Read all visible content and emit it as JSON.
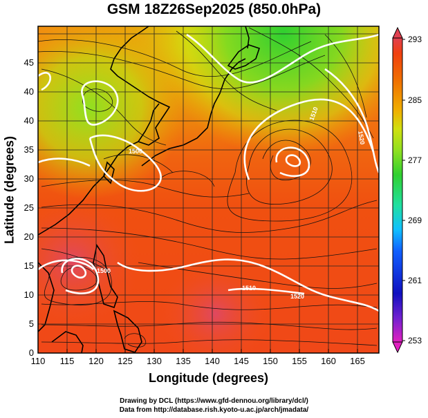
{
  "title": "GSM 18Z26Sep2025 (850.0hPa)",
  "x_axis": {
    "label": "Longitude (degrees)",
    "ticks": [
      "110",
      "115",
      "120",
      "125",
      "130",
      "135",
      "140",
      "145",
      "150",
      "155",
      "160",
      "165"
    ]
  },
  "y_axis": {
    "label": "Latitude  (degrees)",
    "ticks": [
      "0",
      "5",
      "10",
      "15",
      "20",
      "25",
      "30",
      "35",
      "40",
      "45"
    ]
  },
  "colorbar": {
    "ticks": [
      "253",
      "261",
      "269",
      "277",
      "285",
      "293"
    ],
    "colors": [
      "#e020c0",
      "#7020d0",
      "#1010c0",
      "#1060ff",
      "#10c0ff",
      "#20e0a0",
      "#30d030",
      "#90e020",
      "#d0e010",
      "#f0b000",
      "#f07000",
      "#f04010",
      "#e04050"
    ]
  },
  "contour_labels": [
    "1500",
    "1500",
    "1510",
    "1520",
    "1510",
    "1520"
  ],
  "credits": [
    "Drawing by DCL (https://www.gfd-dennou.org/library/dcl/)",
    "Data from http://database.rish.kyoto-u.ac.jp/arch/jmadata/"
  ]
}
